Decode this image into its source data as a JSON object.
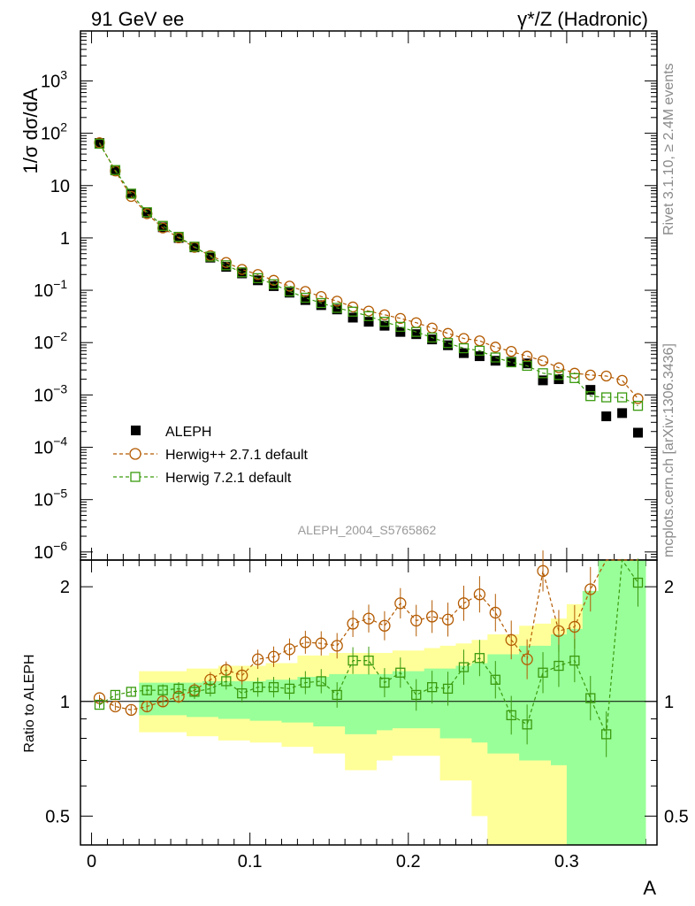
{
  "header": {
    "left_label": "91 GeV ee",
    "right_label": "γ*/Z (Hadronic)"
  },
  "side_text": {
    "rivet": "Rivet 3.1.10, ≥ 2.4M events",
    "mcplots": "mcplots.cern.ch [arXiv:1306.3436]"
  },
  "watermark": "ALEPH_2004_S5765862",
  "colors": {
    "data": "#000000",
    "herwigpp": "#b35a00",
    "herwig7": "#3a9a0e",
    "band_yellow": "#ffff99",
    "band_green": "#99ff99"
  },
  "chart_data": [
    {
      "type": "scatter",
      "panel": "main",
      "title": "",
      "xlabel": "A",
      "ylabel": "1/σ  dσ/dA",
      "yscale": "log",
      "xlim": [
        -0.007,
        0.357
      ],
      "ylim": [
        7e-07,
        9000
      ],
      "x_ticks": [
        "0",
        "0.1",
        "0.2",
        "0.3"
      ],
      "y_ticks_exp": [
        "-6",
        "-5",
        "-4",
        "-3",
        "-2",
        "-1"
      ],
      "y_ticks_plain": [
        "1",
        "10"
      ],
      "y_ticks_pow": [
        "2",
        "3"
      ],
      "legend_position": "bottom-left",
      "x": [
        0.005,
        0.015,
        0.025,
        0.035,
        0.045,
        0.055,
        0.065,
        0.075,
        0.085,
        0.095,
        0.105,
        0.115,
        0.125,
        0.135,
        0.145,
        0.155,
        0.165,
        0.175,
        0.185,
        0.195,
        0.205,
        0.215,
        0.225,
        0.235,
        0.245,
        0.255,
        0.265,
        0.275,
        0.285,
        0.295,
        0.305,
        0.315,
        0.325,
        0.335,
        0.345
      ],
      "series": [
        {
          "name": "ALEPH",
          "marker": "filled-square",
          "values": [
            65,
            19.5,
            7.0,
            3.0,
            1.6,
            1.0,
            0.66,
            0.42,
            0.28,
            0.21,
            0.155,
            0.12,
            0.09,
            0.065,
            0.052,
            0.043,
            0.03,
            0.025,
            0.021,
            0.016,
            0.0145,
            0.0115,
            0.0089,
            0.0063,
            0.0055,
            0.0045,
            0.0043,
            0.004,
            0.0019,
            0.002,
            null,
            0.00125,
            0.00039,
            0.00045,
            0.00019
          ]
        },
        {
          "name": "Herwig++ 2.7.1 default",
          "marker": "open-circle",
          "values": [
            66,
            19.0,
            6.2,
            2.9,
            1.55,
            1.0,
            0.66,
            0.46,
            0.34,
            0.25,
            0.2,
            0.155,
            0.12,
            0.095,
            0.076,
            0.062,
            0.048,
            0.04,
            0.034,
            0.029,
            0.024,
            0.019,
            0.015,
            0.012,
            0.0108,
            0.0082,
            0.0068,
            0.0055,
            0.0045,
            0.0033,
            0.0026,
            0.0024,
            0.0023,
            0.0019,
            0.00085
          ]
        },
        {
          "name": "Herwig 7.2.1 default",
          "marker": "open-square",
          "values": [
            63,
            19.8,
            7.0,
            3.1,
            1.7,
            1.05,
            0.68,
            0.44,
            0.3,
            0.22,
            0.17,
            0.13,
            0.095,
            0.072,
            0.057,
            0.046,
            0.039,
            0.032,
            0.025,
            0.02,
            0.016,
            0.0125,
            0.0098,
            0.0078,
            0.007,
            0.0052,
            0.0042,
            0.0036,
            0.0026,
            0.0024,
            0.0021,
            0.00095,
            0.0009,
            0.0009,
            0.00062
          ]
        }
      ]
    },
    {
      "type": "scatter",
      "panel": "ratio",
      "ylabel": "Ratio to ALEPH",
      "xlabel": "A",
      "yscale": "log",
      "xlim": [
        -0.007,
        0.357
      ],
      "ylim": [
        0.42,
        2.35
      ],
      "y_ticks": [
        "0.5",
        "1",
        "2"
      ],
      "x": [
        0.005,
        0.015,
        0.025,
        0.035,
        0.045,
        0.055,
        0.065,
        0.075,
        0.085,
        0.095,
        0.105,
        0.115,
        0.125,
        0.135,
        0.145,
        0.155,
        0.165,
        0.175,
        0.185,
        0.195,
        0.205,
        0.215,
        0.225,
        0.235,
        0.245,
        0.255,
        0.265,
        0.275,
        0.285,
        0.295,
        0.305,
        0.315,
        0.325,
        0.335,
        0.345
      ],
      "bands": {
        "yellow_hi": [
          1.0,
          1.0,
          1.0,
          1.2,
          1.2,
          1.2,
          1.22,
          1.22,
          1.24,
          1.24,
          1.24,
          1.26,
          1.26,
          1.32,
          1.32,
          1.34,
          1.34,
          1.34,
          1.34,
          1.36,
          1.36,
          1.38,
          1.4,
          1.42,
          1.45,
          1.5,
          1.5,
          1.58,
          1.6,
          1.65,
          1.8,
          1.9,
          2.35,
          2.35,
          2.35
        ],
        "yellow_lo": [
          1.0,
          1.0,
          1.0,
          0.83,
          0.83,
          0.83,
          0.81,
          0.81,
          0.79,
          0.79,
          0.78,
          0.78,
          0.76,
          0.76,
          0.73,
          0.73,
          0.66,
          0.66,
          0.7,
          0.72,
          0.72,
          0.72,
          0.62,
          0.62,
          0.5,
          0.42,
          0.42,
          0.42,
          0.42,
          0.42,
          0.42,
          0.42,
          0.42,
          0.42,
          0.42
        ],
        "green_hi": [
          1.0,
          1.0,
          1.0,
          1.12,
          1.12,
          1.12,
          1.12,
          1.13,
          1.13,
          1.13,
          1.13,
          1.14,
          1.14,
          1.16,
          1.16,
          1.18,
          1.18,
          1.18,
          1.18,
          1.2,
          1.2,
          1.22,
          1.22,
          1.24,
          1.26,
          1.33,
          1.33,
          1.4,
          1.4,
          1.5,
          1.55,
          1.95,
          2.35,
          2.35,
          2.35
        ],
        "green_lo": [
          1.0,
          1.0,
          1.0,
          0.92,
          0.92,
          0.92,
          0.91,
          0.91,
          0.9,
          0.9,
          0.89,
          0.89,
          0.88,
          0.88,
          0.86,
          0.86,
          0.82,
          0.82,
          0.84,
          0.85,
          0.85,
          0.85,
          0.8,
          0.8,
          0.78,
          0.73,
          0.73,
          0.7,
          0.7,
          0.68,
          0.42,
          0.42,
          0.42,
          0.42,
          0.42
        ]
      },
      "series": [
        {
          "name": "Herwig++ 2.7.1 default",
          "values": [
            1.02,
            0.97,
            0.95,
            0.97,
            1.0,
            1.03,
            1.07,
            1.14,
            1.21,
            1.17,
            1.29,
            1.31,
            1.37,
            1.43,
            1.42,
            1.4,
            1.6,
            1.65,
            1.58,
            1.81,
            1.63,
            1.67,
            1.64,
            1.81,
            1.91,
            1.71,
            1.45,
            1.29,
            2.2,
            1.53,
            1.57,
            1.97,
            2.35,
            2.35,
            2.35
          ]
        },
        {
          "name": "Herwig 7.2.1 default",
          "values": [
            0.98,
            1.04,
            1.06,
            1.07,
            1.07,
            1.08,
            1.06,
            1.08,
            1.13,
            1.05,
            1.09,
            1.09,
            1.08,
            1.12,
            1.13,
            1.04,
            1.28,
            1.28,
            1.12,
            1.19,
            1.04,
            1.09,
            1.08,
            1.23,
            1.3,
            1.14,
            0.92,
            0.87,
            1.19,
            1.24,
            1.28,
            1.02,
            0.82,
            2.35,
            2.05
          ]
        }
      ]
    }
  ]
}
